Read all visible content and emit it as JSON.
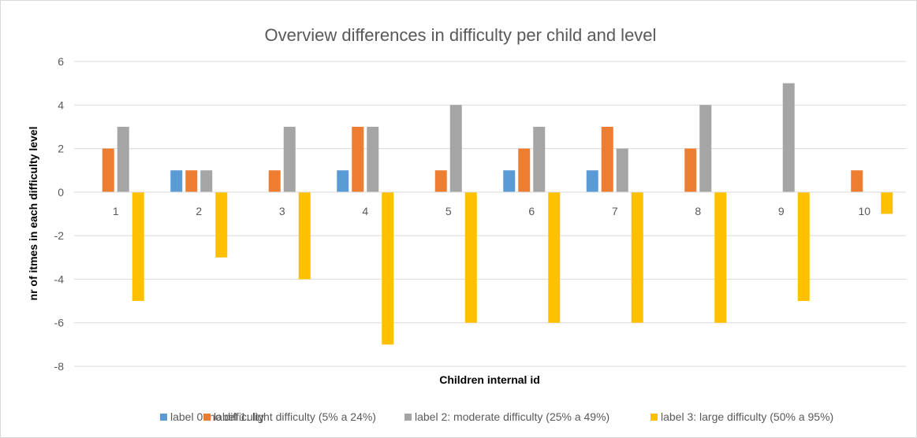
{
  "chart_data": {
    "type": "bar",
    "title": "Overview differences in difficulty per child and level",
    "xlabel": "Children internal id",
    "ylabel": "nr of itmes in each difficulty level",
    "categories": [
      "1",
      "2",
      "3",
      "4",
      "5",
      "6",
      "7",
      "8",
      "9",
      "10"
    ],
    "ylim": [
      -8,
      6
    ],
    "yticks": [
      "-8",
      "-6",
      "-4",
      "-2",
      "0",
      "2",
      "4",
      "6"
    ],
    "grid": true,
    "legend_position": "bottom",
    "series": [
      {
        "name": "label 0: no difficulty",
        "color": "#5b9bd5",
        "values": [
          0,
          1,
          0,
          1,
          0,
          1,
          1,
          0,
          0,
          0
        ]
      },
      {
        "name": "label 1: light difficulty (5% a 24%)",
        "color": "#ed7d31",
        "values": [
          2,
          1,
          1,
          3,
          1,
          2,
          3,
          2,
          0,
          1
        ]
      },
      {
        "name": "label 2: moderate difficulty (25% a 49%)",
        "color": "#a5a5a5",
        "values": [
          3,
          1,
          3,
          3,
          4,
          3,
          2,
          4,
          5,
          0
        ]
      },
      {
        "name": "label 3: large difficulty (50% a 95%)",
        "color": "#ffc000",
        "values": [
          -5,
          -3,
          -4,
          -7,
          -6,
          -6,
          -6,
          -6,
          -5,
          -1
        ]
      }
    ]
  }
}
